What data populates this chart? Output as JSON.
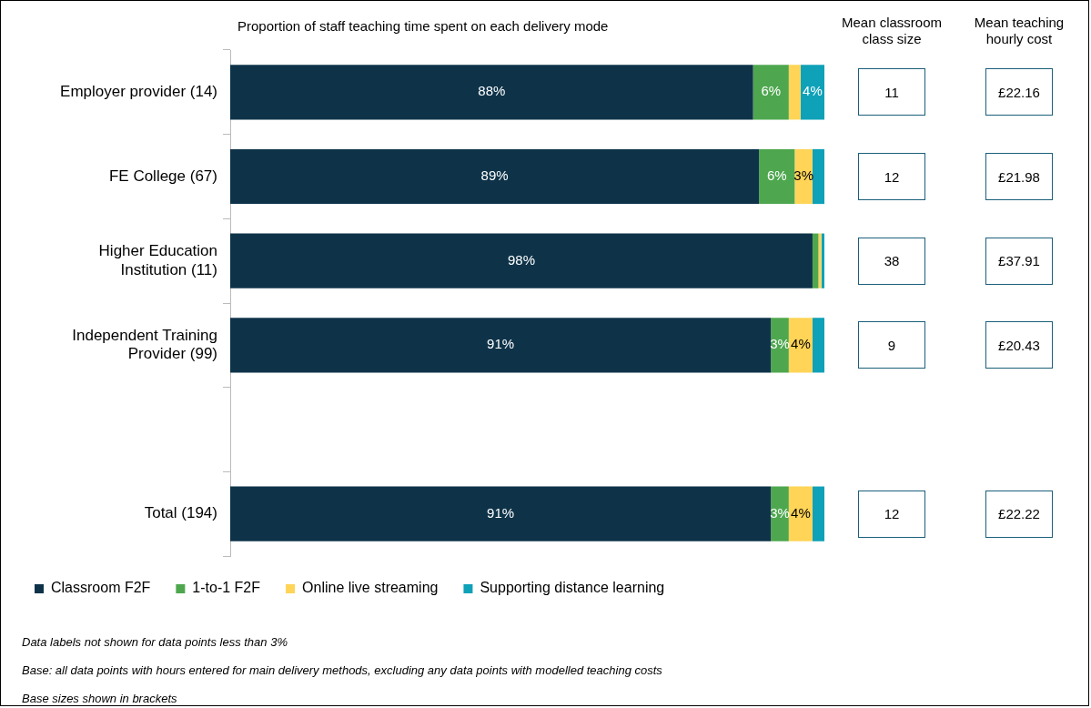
{
  "chart_data": [
    {
      "type": "bar",
      "orientation": "horizontal",
      "stacked": true,
      "title": "Proportion of staff teaching time spent on each delivery mode",
      "categories": [
        "Employer provider (14)",
        "FE College (67)",
        "Higher Education Institution (11)",
        "Independent Training Provider (99)",
        null,
        "Total (194)"
      ],
      "xlim": [
        0,
        100
      ],
      "tick_labels": "y",
      "legend": "bottom",
      "series": [
        {
          "name": "Classroom F2F",
          "color": "#0e3349",
          "values": [
            88,
            89,
            98,
            91,
            null,
            91
          ],
          "value_labels": [
            "88%",
            "89%",
            "98%",
            "91%",
            null,
            "91%"
          ]
        },
        {
          "name": "1-to-1 F2F",
          "color": "#4ea74e",
          "values": [
            6,
            6,
            1,
            3,
            null,
            3
          ],
          "value_labels": [
            "6%",
            "6%",
            null,
            "3%",
            null,
            "3%"
          ]
        },
        {
          "name": "Online live streaming",
          "color": "#ffd457",
          "values": [
            2,
            3,
            0.5,
            4,
            null,
            4
          ],
          "value_labels": [
            null,
            "3%",
            null,
            "4%",
            null,
            "4%"
          ]
        },
        {
          "name": "Supporting distance learning",
          "color": "#0fa1b8",
          "values": [
            4,
            2,
            0.5,
            2,
            null,
            2
          ],
          "value_labels": [
            "4%",
            null,
            null,
            null,
            null,
            null
          ]
        }
      ],
      "annotations": [
        "Data labels not shown for data points less than 3%",
        "Base: all data points with hours entered for main delivery methods, excluding any data points with modelled teaching costs",
        "Base sizes shown in brackets"
      ]
    },
    {
      "type": "other",
      "title": "Mean classroom class size",
      "categories": [
        null,
        null,
        null,
        null,
        null,
        null
      ],
      "values": [
        11,
        12,
        38,
        9,
        null,
        12
      ],
      "value_labels": [
        "11",
        "12",
        "38",
        "9",
        null,
        "12"
      ]
    },
    {
      "type": "other",
      "title": "Mean teaching hourly cost",
      "categories": [
        null,
        null,
        null,
        null,
        null,
        null
      ],
      "values": [
        22.16,
        21.98,
        37.91,
        20.43,
        null,
        22.22
      ],
      "value_labels": [
        "£22.16",
        "£21.98",
        "£37.91",
        "£20.43",
        null,
        "£22.22"
      ]
    }
  ]
}
